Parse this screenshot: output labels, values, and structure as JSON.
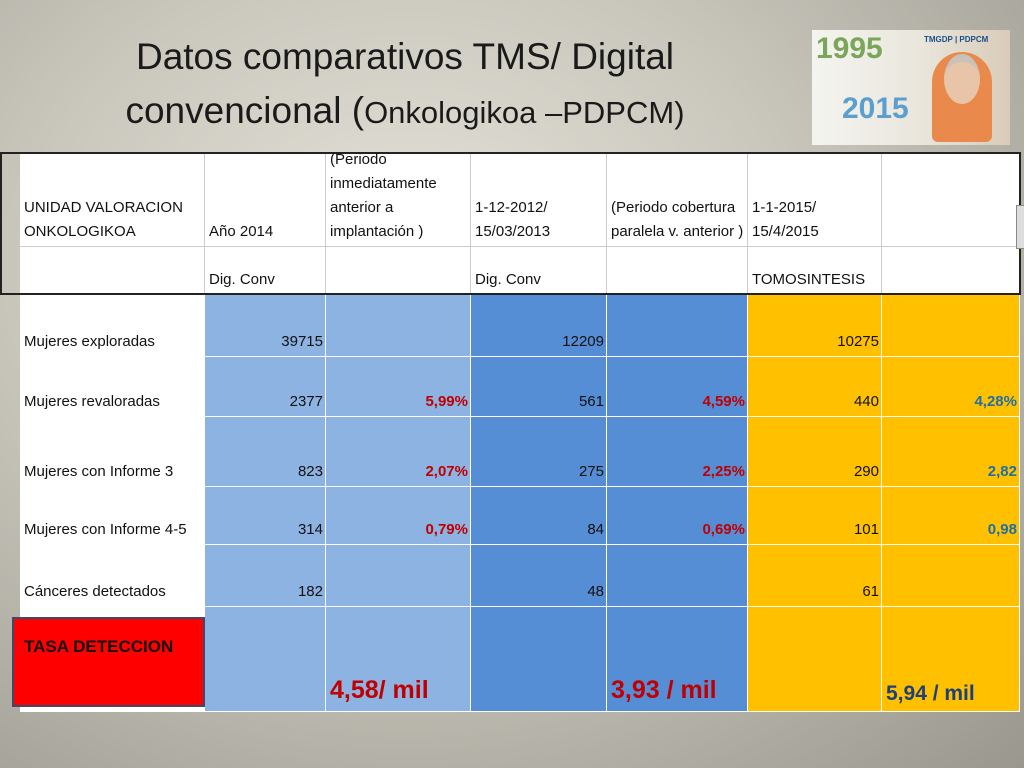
{
  "header": {
    "title_line1": "Datos comparativos TMS/ Digital",
    "title_line2_a": "convencional (",
    "title_line2_b": "Onkologikoa –PDPCM)"
  },
  "logo": {
    "year_start": "1995",
    "year_end": "2015",
    "tag": "TMGDP | PDPCM"
  },
  "table": {
    "header_rows": [
      [
        "UNIDAD VALORACION ONKOLOGIKOA",
        "Año 2014",
        "(Periodo inmediatamente anterior a implantación )",
        "1-12-2012/ 15/03/2013",
        "(Periodo cobertura paralela  v. anterior )",
        "1-1-2015/ 15/4/2015",
        null
      ],
      [
        null,
        "Dig. Conv",
        null,
        "Dig. Conv",
        null,
        "TOMOSINTESIS",
        null
      ]
    ],
    "rows": [
      [
        "Mujeres exploradas",
        "39715",
        null,
        "12209",
        null,
        "10275",
        null
      ],
      [
        "Mujeres revaloradas",
        "2377",
        "5,99%",
        "561",
        "4,59%",
        "440",
        "4,28%"
      ],
      [
        "Mujeres con Informe 3",
        "823",
        "2,07%",
        "275",
        "2,25%",
        "290",
        "2,82"
      ],
      [
        "Mujeres con Informe 4-5",
        "314",
        "0,79%",
        "84",
        "0,69%",
        "101",
        "0,98"
      ],
      [
        "Cánceres detectados",
        "182",
        null,
        "48",
        null,
        "61",
        null
      ],
      [
        "TASA DETECCION",
        null,
        "4,58/ mil",
        null,
        "3,93 / mil",
        null,
        "5,94 / mil"
      ]
    ]
  }
}
